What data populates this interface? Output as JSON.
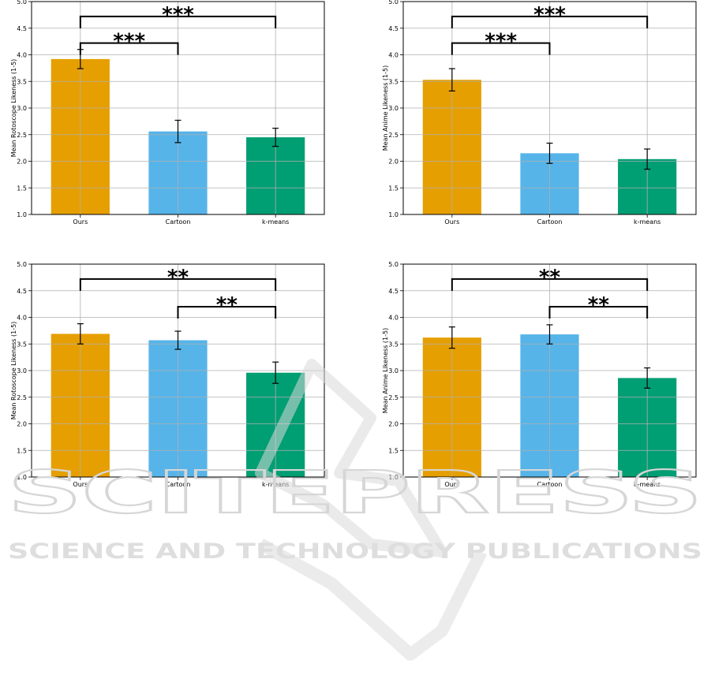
{
  "colors": {
    "Ours": "#e69f00",
    "Cartoon": "#56b4e9",
    "k-means": "#009e73",
    "grid": "#b0b0b0",
    "axis": "#000000"
  },
  "watermark": {
    "title": "SCITEPRESS",
    "subtitle": "SCIENCE AND TECHNOLOGY PUBLICATIONS"
  },
  "chart_data": [
    {
      "type": "bar",
      "categories": [
        "Ours",
        "Cartoon",
        "k-means"
      ],
      "values": [
        3.92,
        2.56,
        2.45
      ],
      "errors": [
        0.18,
        0.21,
        0.17
      ],
      "ylabel": "Mean Rotoscope Likeness (1-5)",
      "ylim": [
        1.0,
        5.0
      ],
      "yticks": [
        "1.0",
        "1.5",
        "2.0",
        "2.5",
        "3.0",
        "3.5",
        "4.0",
        "4.5",
        "5.0"
      ],
      "grid": true,
      "significance": [
        {
          "from": 0,
          "to": 2,
          "y": 4.72,
          "label": "***"
        },
        {
          "from": 0,
          "to": 1,
          "y": 4.22,
          "label": "***"
        }
      ]
    },
    {
      "type": "bar",
      "categories": [
        "Ours",
        "Cartoon",
        "k-means"
      ],
      "values": [
        3.53,
        2.15,
        2.04
      ],
      "errors": [
        0.21,
        0.19,
        0.19
      ],
      "ylabel": "Mean Anime Likeness (1-5)",
      "ylim": [
        1.0,
        5.0
      ],
      "yticks": [
        "1.0",
        "1.5",
        "2.0",
        "2.5",
        "3.0",
        "3.5",
        "4.0",
        "4.5",
        "5.0"
      ],
      "grid": true,
      "significance": [
        {
          "from": 0,
          "to": 2,
          "y": 4.72,
          "label": "***"
        },
        {
          "from": 0,
          "to": 1,
          "y": 4.22,
          "label": "***"
        }
      ]
    },
    {
      "type": "bar",
      "categories": [
        "Ours",
        "Cartoon",
        "k-means"
      ],
      "values": [
        3.69,
        3.57,
        2.96
      ],
      "errors": [
        0.19,
        0.17,
        0.2
      ],
      "ylabel": "Mean Rotoscope Likeness (1-5)",
      "ylim": [
        1.0,
        5.0
      ],
      "yticks": [
        "1.0",
        "1.5",
        "2.0",
        "2.5",
        "3.0",
        "3.5",
        "4.0",
        "4.5",
        "5.0"
      ],
      "grid": true,
      "significance": [
        {
          "from": 0,
          "to": 2,
          "y": 4.72,
          "label": "**"
        },
        {
          "from": 1,
          "to": 2,
          "y": 4.2,
          "label": "**"
        }
      ]
    },
    {
      "type": "bar",
      "categories": [
        "Ours",
        "Cartoon",
        "k-means"
      ],
      "values": [
        3.62,
        3.68,
        2.86
      ],
      "errors": [
        0.2,
        0.18,
        0.19
      ],
      "ylabel": "Mean Anime Likeness (1-5)",
      "ylim": [
        1.0,
        5.0
      ],
      "yticks": [
        "1.0",
        "1.5",
        "2.0",
        "2.5",
        "3.0",
        "3.5",
        "4.0",
        "4.5",
        "5.0"
      ],
      "grid": true,
      "significance": [
        {
          "from": 0,
          "to": 2,
          "y": 4.72,
          "label": "**"
        },
        {
          "from": 1,
          "to": 2,
          "y": 4.2,
          "label": "**"
        }
      ]
    }
  ]
}
